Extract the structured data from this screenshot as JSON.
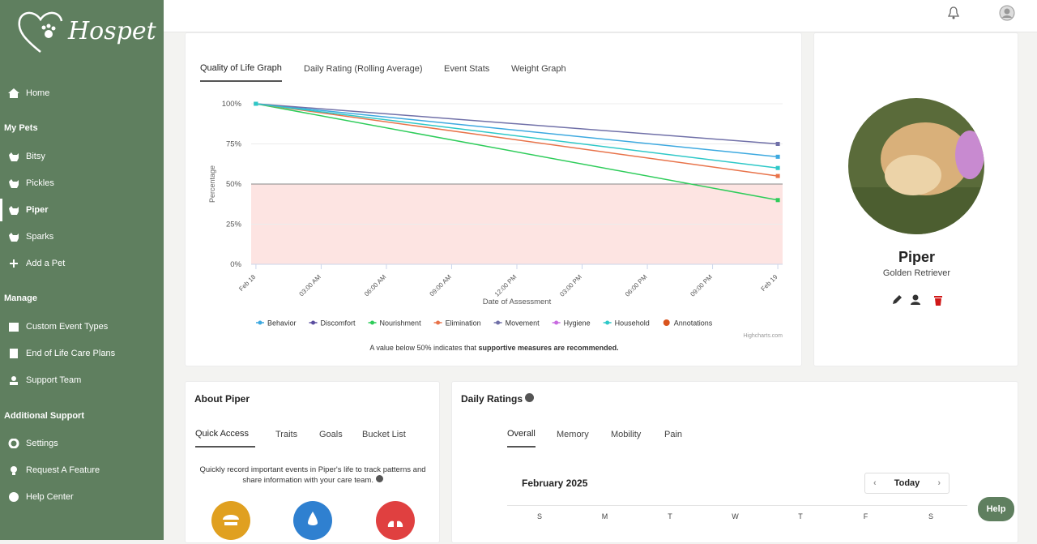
{
  "sidebar": {
    "brand": "Hospet",
    "home": "Home",
    "sections": [
      {
        "title": "My Pets",
        "items": [
          "Bitsy",
          "Pickles",
          "Piper",
          "Sparks",
          "Add a Pet"
        ]
      },
      {
        "title": "Manage",
        "items": [
          "Custom Event Types",
          "End of Life Care Plans",
          "Support Team"
        ]
      },
      {
        "title": "Additional Support",
        "items": [
          "Settings",
          "Request A Feature",
          "Help Center"
        ]
      }
    ]
  },
  "graph_tabs": [
    "Quality of Life Graph",
    "Daily Rating (Rolling Average)",
    "Event Stats",
    "Weight Graph"
  ],
  "chart_data": {
    "type": "line",
    "ylabel": "Percentage",
    "xlabel": "Date of Assessment",
    "x": [
      0,
      24
    ],
    "xlim": [
      -0.22,
      24.22
    ],
    "xticks": [
      {
        "value": 0,
        "label": "Feb 18"
      },
      {
        "value": 3,
        "label": "03:00 AM"
      },
      {
        "value": 6,
        "label": "06:00 AM"
      },
      {
        "value": 9,
        "label": "09:00 AM"
      },
      {
        "value": 12,
        "label": "12:00 PM"
      },
      {
        "value": 15,
        "label": "03:00 PM"
      },
      {
        "value": 18,
        "label": "06:00 PM"
      },
      {
        "value": 21,
        "label": "09:00 PM"
      },
      {
        "value": 24,
        "label": "Feb 19"
      }
    ],
    "ylim": [
      0,
      100
    ],
    "yticks": [
      {
        "value": 0,
        "label": "0%"
      },
      {
        "value": 25,
        "label": "25%"
      },
      {
        "value": 50,
        "label": "50%"
      },
      {
        "value": 75,
        "label": "75%"
      },
      {
        "value": 100,
        "label": "100%"
      }
    ],
    "grid": true,
    "threshold": 50,
    "threshold_color": "#fde4e2",
    "series": [
      {
        "name": "Behavior",
        "color": "#3da9e0",
        "values": [
          100,
          67
        ]
      },
      {
        "name": "Discomfort",
        "color": "#5b4ea0",
        "values": [
          null,
          null
        ]
      },
      {
        "name": "Nourishment",
        "color": "#2ecc5a",
        "values": [
          100,
          40
        ]
      },
      {
        "name": "Elimination",
        "color": "#e8734a",
        "values": [
          100,
          55
        ]
      },
      {
        "name": "Movement",
        "color": "#7070a8",
        "values": [
          100,
          75
        ]
      },
      {
        "name": "Hygiene",
        "color": "#c86be0",
        "values": [
          null,
          null
        ]
      },
      {
        "name": "Household",
        "color": "#2ec8c8",
        "values": [
          100,
          60
        ]
      },
      {
        "name": "Annotations",
        "color": "#d9541e",
        "values": [
          null,
          null
        ]
      }
    ],
    "credit": "Highcharts.com",
    "note": "A value below 50% indicates that",
    "note_emphasis": "supportive measures are recommended."
  },
  "profile": {
    "name": "Piper",
    "breed": "Golden Retriever"
  },
  "about": {
    "title": "About Piper",
    "tabs": [
      "Quick Access",
      "Traits",
      "Goals",
      "Bucket List"
    ],
    "text": "Quickly record important events in Piper's life to track patterns and share information with your care team."
  },
  "ratings": {
    "title": "Daily Ratings",
    "tabs": [
      "Overall",
      "Memory",
      "Mobility",
      "Pain"
    ],
    "month": "February 2025",
    "today": "Today",
    "weekdays": [
      "S",
      "M",
      "T",
      "W",
      "T",
      "F",
      "S"
    ]
  },
  "help": "Help"
}
